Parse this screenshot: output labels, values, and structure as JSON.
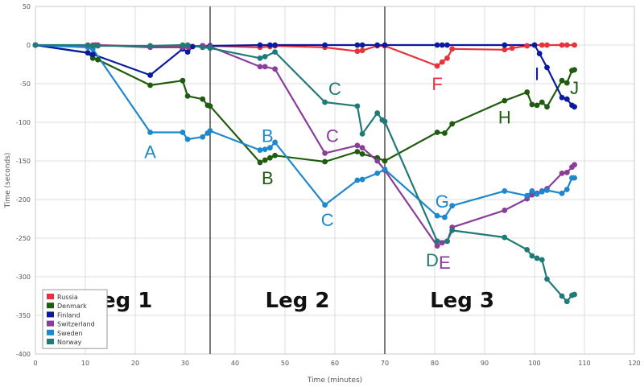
{
  "chart_data": {
    "type": "line",
    "title": "",
    "xlabel": "Time (minutes)",
    "ylabel": "Time (seconds)",
    "xlim": [
      0,
      120
    ],
    "ylim": [
      -400,
      50
    ],
    "x_ticks": [
      0,
      10,
      20,
      30,
      40,
      50,
      60,
      70,
      80,
      90,
      100,
      110,
      120
    ],
    "y_ticks": [
      50,
      0,
      -50,
      -100,
      -150,
      -200,
      -250,
      -300,
      -350,
      -400
    ],
    "grid": true,
    "legend_position": "bottom-left",
    "leg_dividers": [
      35,
      70
    ],
    "leg_labels": [
      {
        "text": "Leg 1",
        "x": 17,
        "y": -330
      },
      {
        "text": "Leg 2",
        "x": 52.5,
        "y": -330
      },
      {
        "text": "Leg 3",
        "x": 85.5,
        "y": -330
      }
    ],
    "series": [
      {
        "name": "Russia",
        "color": "#e8323c",
        "points": [
          [
            0,
            0
          ],
          [
            10.5,
            -1
          ],
          [
            11.5,
            0
          ],
          [
            12,
            0
          ],
          [
            12.5,
            0
          ],
          [
            23,
            -2
          ],
          [
            29.5,
            -2
          ],
          [
            31,
            -2
          ],
          [
            33.5,
            -1
          ],
          [
            35,
            -1
          ],
          [
            45,
            -3
          ],
          [
            47,
            -2
          ],
          [
            48,
            -1
          ],
          [
            58,
            -3
          ],
          [
            64.5,
            -8
          ],
          [
            65.5,
            -7
          ],
          [
            68.5,
            -1
          ],
          [
            70,
            -1
          ],
          [
            80.5,
            -27
          ],
          [
            81.5,
            -22
          ],
          [
            82.5,
            -17
          ],
          [
            83.5,
            -5
          ],
          [
            94,
            -6
          ],
          [
            95.5,
            -4
          ],
          [
            98.5,
            -1
          ],
          [
            100,
            0
          ],
          [
            101.5,
            0
          ],
          [
            102.5,
            0
          ],
          [
            105.5,
            0
          ],
          [
            106.5,
            0
          ],
          [
            108,
            0
          ]
        ]
      },
      {
        "name": "Denmark",
        "color": "#1f5c10",
        "points": [
          [
            0,
            0
          ],
          [
            10.5,
            -10
          ],
          [
            11.5,
            -17
          ],
          [
            12.5,
            -19
          ],
          [
            23,
            -52
          ],
          [
            29.5,
            -46
          ],
          [
            30.5,
            -66
          ],
          [
            33.5,
            -70
          ],
          [
            34.5,
            -78
          ],
          [
            35,
            -79
          ],
          [
            45,
            -152
          ],
          [
            46,
            -149
          ],
          [
            47,
            -146
          ],
          [
            48,
            -143
          ],
          [
            58,
            -151
          ],
          [
            64.5,
            -138
          ],
          [
            65.5,
            -141
          ],
          [
            68.5,
            -146
          ],
          [
            70,
            -150
          ],
          [
            80.5,
            -113
          ],
          [
            82,
            -114
          ],
          [
            83.5,
            -102
          ],
          [
            94,
            -72
          ],
          [
            98.5,
            -61
          ],
          [
            99.5,
            -77
          ],
          [
            100.5,
            -78
          ],
          [
            101.5,
            -74
          ],
          [
            102.5,
            -80
          ],
          [
            105.5,
            -46
          ],
          [
            106.5,
            -49
          ],
          [
            107.5,
            -33
          ],
          [
            108,
            -32
          ]
        ]
      },
      {
        "name": "Finland",
        "color": "#0a1a9e",
        "points": [
          [
            0,
            0
          ],
          [
            10.5,
            -10
          ],
          [
            11.5,
            -12
          ],
          [
            23,
            -39
          ],
          [
            29.5,
            -5
          ],
          [
            30.5,
            -9
          ],
          [
            31.5,
            -2
          ],
          [
            33.5,
            -1
          ],
          [
            35,
            -1
          ],
          [
            45,
            0
          ],
          [
            47,
            0
          ],
          [
            48,
            0
          ],
          [
            58,
            0
          ],
          [
            64.5,
            0
          ],
          [
            65.5,
            0
          ],
          [
            68.5,
            0
          ],
          [
            70,
            0
          ],
          [
            80.5,
            0
          ],
          [
            81.5,
            0
          ],
          [
            82.5,
            0
          ],
          [
            94,
            0
          ],
          [
            100,
            0
          ],
          [
            101,
            -11
          ],
          [
            102.5,
            -29
          ],
          [
            105.5,
            -68
          ],
          [
            106.5,
            -70
          ],
          [
            107.5,
            -78
          ],
          [
            108,
            -80
          ]
        ]
      },
      {
        "name": "Switzerland",
        "color": "#8a3d99",
        "points": [
          [
            0,
            0
          ],
          [
            10.5,
            -1
          ],
          [
            11.5,
            -2
          ],
          [
            12,
            0
          ],
          [
            12.5,
            0
          ],
          [
            23,
            -3
          ],
          [
            29.5,
            -3
          ],
          [
            30.5,
            -2
          ],
          [
            33.5,
            -1
          ],
          [
            35,
            -2
          ],
          [
            45,
            -28
          ],
          [
            46,
            -28
          ],
          [
            48,
            -31
          ],
          [
            58,
            -140
          ],
          [
            64.5,
            -130
          ],
          [
            65.5,
            -133
          ],
          [
            68.5,
            -150
          ],
          [
            70,
            -162
          ],
          [
            80.5,
            -260
          ],
          [
            81.5,
            -256
          ],
          [
            82.5,
            -254
          ],
          [
            83.5,
            -236
          ],
          [
            94,
            -214
          ],
          [
            98.5,
            -199
          ],
          [
            99.5,
            -194
          ],
          [
            100.5,
            -192
          ],
          [
            101.5,
            -189
          ],
          [
            102.5,
            -186
          ],
          [
            105.5,
            -166
          ],
          [
            106.5,
            -165
          ],
          [
            107.5,
            -158
          ],
          [
            108,
            -155
          ]
        ]
      },
      {
        "name": "Sweden",
        "color": "#1d88cc",
        "points": [
          [
            0,
            0
          ],
          [
            10.5,
            -3
          ],
          [
            11.5,
            -5
          ],
          [
            23,
            -113
          ],
          [
            29.5,
            -113
          ],
          [
            30.5,
            -122
          ],
          [
            33.5,
            -119
          ],
          [
            34.5,
            -114
          ],
          [
            35,
            -111
          ],
          [
            45,
            -136
          ],
          [
            46,
            -135
          ],
          [
            47,
            -133
          ],
          [
            48,
            -126
          ],
          [
            58,
            -207
          ],
          [
            64.5,
            -175
          ],
          [
            65.5,
            -174
          ],
          [
            68.5,
            -166
          ],
          [
            70,
            -161
          ],
          [
            80.5,
            -221
          ],
          [
            82,
            -223
          ],
          [
            83.5,
            -208
          ],
          [
            94,
            -189
          ],
          [
            98.5,
            -195
          ],
          [
            99.5,
            -189
          ],
          [
            100.5,
            -193
          ],
          [
            101.5,
            -190
          ],
          [
            102.5,
            -188
          ],
          [
            105.5,
            -192
          ],
          [
            106.5,
            -187
          ],
          [
            107.5,
            -172
          ],
          [
            108,
            -172
          ]
        ]
      },
      {
        "name": "Norway",
        "color": "#1f7a78",
        "points": [
          [
            0,
            0
          ],
          [
            10.5,
            0
          ],
          [
            11.5,
            -1
          ],
          [
            12.5,
            -1
          ],
          [
            23,
            -1
          ],
          [
            29.5,
            0
          ],
          [
            30.5,
            0
          ],
          [
            33.5,
            -3
          ],
          [
            35,
            -4
          ],
          [
            45,
            -17
          ],
          [
            46,
            -15
          ],
          [
            48,
            -9
          ],
          [
            58,
            -74
          ],
          [
            64.5,
            -79
          ],
          [
            65.5,
            -115
          ],
          [
            68.5,
            -88
          ],
          [
            69.5,
            -97
          ],
          [
            70,
            -99
          ],
          [
            80.5,
            -254
          ],
          [
            82.5,
            -254
          ],
          [
            83.5,
            -240
          ],
          [
            94,
            -249
          ],
          [
            98.5,
            -265
          ],
          [
            99.5,
            -273
          ],
          [
            100.5,
            -276
          ],
          [
            101.5,
            -278
          ],
          [
            102.5,
            -303
          ],
          [
            105.5,
            -325
          ],
          [
            106.5,
            -332
          ],
          [
            107.5,
            -324
          ],
          [
            108,
            -323
          ]
        ]
      }
    ],
    "annotations": [
      {
        "text": "A",
        "x": 23,
        "y": -138,
        "series": "Sweden"
      },
      {
        "text": "B",
        "x": 46.5,
        "y": -117,
        "series": "Sweden"
      },
      {
        "text": "B",
        "x": 46.5,
        "y": -172,
        "series": "Denmark"
      },
      {
        "text": "C",
        "x": 60,
        "y": -56,
        "series": "Norway"
      },
      {
        "text": "C",
        "x": 59.5,
        "y": -117,
        "series": "Switzerland"
      },
      {
        "text": "C",
        "x": 58.5,
        "y": -226,
        "series": "Sweden"
      },
      {
        "text": "D",
        "x": 79.5,
        "y": -278,
        "series": "Norway"
      },
      {
        "text": "E",
        "x": 82,
        "y": -281,
        "series": "Switzerland"
      },
      {
        "text": "F",
        "x": 80.5,
        "y": -50,
        "series": "Russia"
      },
      {
        "text": "G",
        "x": 81.5,
        "y": -202,
        "series": "Sweden"
      },
      {
        "text": "H",
        "x": 94,
        "y": -93,
        "series": "Denmark"
      },
      {
        "text": "I",
        "x": 100.5,
        "y": -37,
        "series": "Finland"
      },
      {
        "text": "J",
        "x": 108,
        "y": -55,
        "series": "Denmark"
      }
    ]
  }
}
